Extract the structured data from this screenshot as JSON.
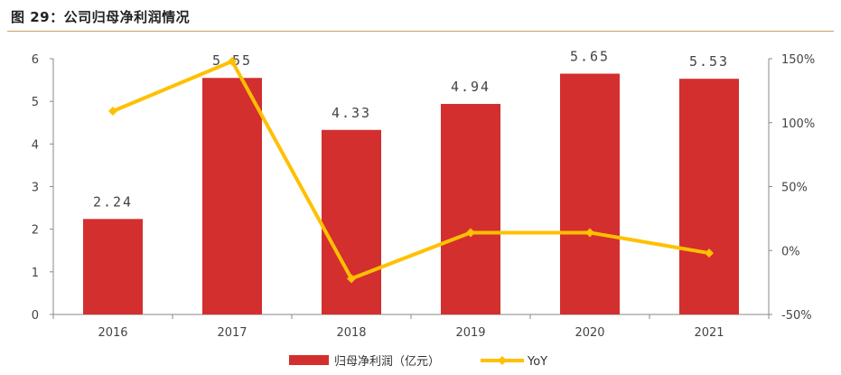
{
  "title": "图 29：公司归母净利润情况",
  "chart_data": {
    "type": "bar",
    "categories": [
      "2016",
      "2017",
      "2018",
      "2019",
      "2020",
      "2021"
    ],
    "series": [
      {
        "name": "归母净利润（亿元）",
        "type": "bar",
        "axis": "left",
        "values": [
          2.24,
          5.55,
          4.33,
          4.94,
          5.65,
          5.53
        ],
        "data_labels": [
          "2.24",
          "5.55",
          "4.33",
          "4.94",
          "5.65",
          "5.53"
        ],
        "color": "#d32f2f"
      },
      {
        "name": "YoY",
        "type": "line",
        "axis": "right",
        "values": [
          109,
          148,
          -22,
          14,
          14,
          -2
        ],
        "color": "#ffc000"
      }
    ],
    "y_left": {
      "lim": [
        0,
        6
      ],
      "ticks": [
        "0",
        "1",
        "2",
        "3",
        "4",
        "5",
        "6"
      ]
    },
    "y_right": {
      "lim": [
        -50,
        150
      ],
      "ticks": [
        "-50%",
        "0%",
        "50%",
        "100%",
        "150%"
      ]
    },
    "grid": false,
    "legend_position": "bottom"
  }
}
